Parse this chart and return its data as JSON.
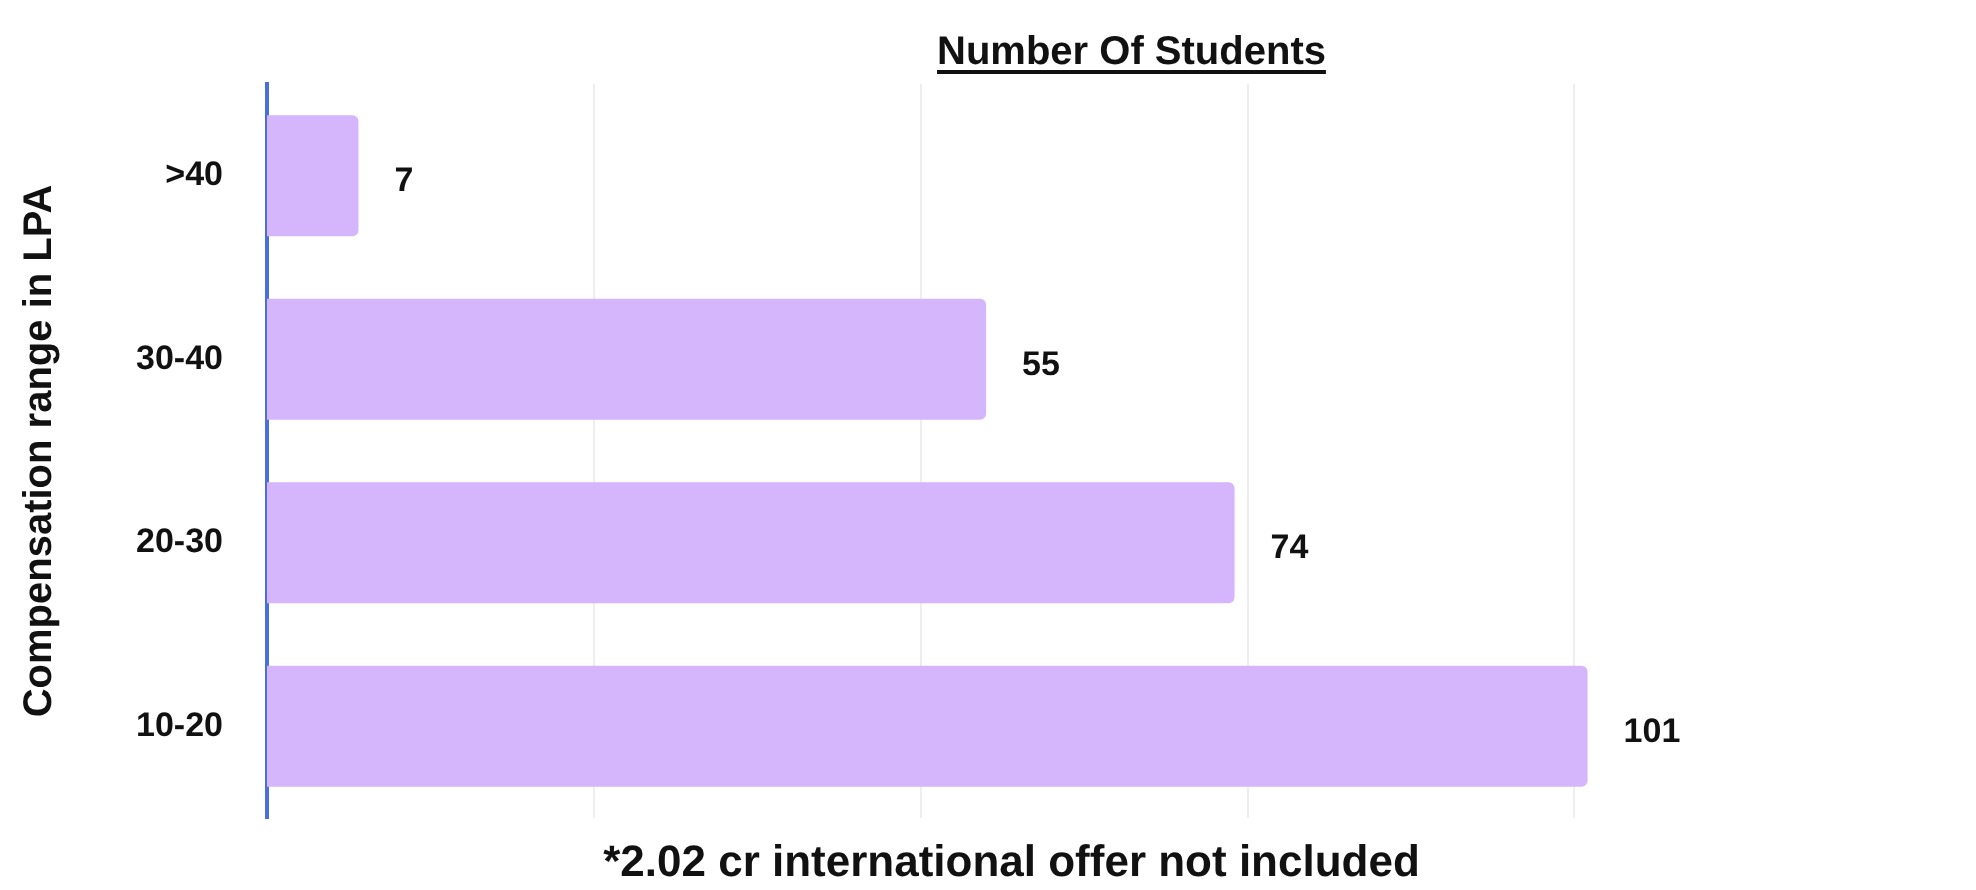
{
  "chart_data": {
    "type": "bar",
    "orientation": "horizontal",
    "title": "Number Of Students",
    "ylabel": "Compensation range in LPA",
    "categories": [
      ">40",
      "30-40",
      "20-30",
      "10-20"
    ],
    "values": [
      7,
      55,
      74,
      101
    ],
    "color": "#d5b5fc",
    "xticks": [
      {
        "value": 25,
        "label": null
      },
      {
        "value": 50,
        "label": null
      },
      {
        "value": 75,
        "label": null
      },
      {
        "value": 100,
        "label": null
      }
    ],
    "grid": "x",
    "tick_labels": "y",
    "legend": false,
    "data_labels": true,
    "annotations": [
      "*2.02 cr international offer not included"
    ]
  }
}
